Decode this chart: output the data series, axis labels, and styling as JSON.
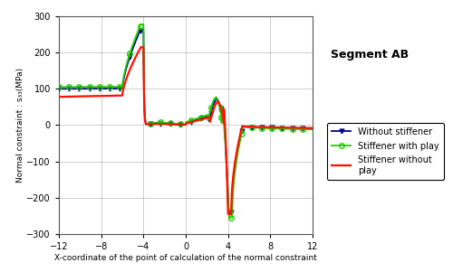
{
  "title": "Segment AB",
  "xlabel": "X-coordinate of the point of calculation of the normal constraint",
  "ylabel": "Normal constraint : s₃₃(MPa)",
  "xlim": [
    -12,
    12
  ],
  "ylim": [
    -300,
    300
  ],
  "xticks": [
    -12,
    -8,
    -4,
    0,
    4,
    8,
    12
  ],
  "yticks": [
    -300,
    -200,
    -100,
    0,
    100,
    200,
    300
  ],
  "legend": [
    "Without stiffener",
    "Stiffener with play",
    "Stiffener without\nplay"
  ],
  "colors": {
    "blue": "#00008B",
    "green": "#22CC00",
    "red": "#FF1100"
  },
  "bg_color": "#FFFFFF",
  "figsize": [
    5.0,
    3.01
  ],
  "dpi": 100
}
